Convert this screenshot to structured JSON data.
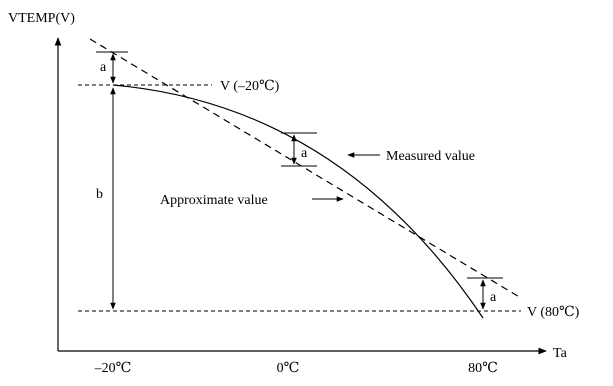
{
  "diagram": {
    "y_axis_label": "VTEMP(V)",
    "x_axis_label": "Ta",
    "x_ticks": [
      "–20℃",
      "0℃",
      "80℃"
    ],
    "ref_upper_label": "V (–20℃)",
    "ref_lower_label": "V (80℃)",
    "measured_label": "Measured value",
    "approximate_label": "Approximate value",
    "delta_label": "a",
    "span_label": "b",
    "colors": {
      "line": "#000000",
      "background": "#ffffff"
    }
  }
}
